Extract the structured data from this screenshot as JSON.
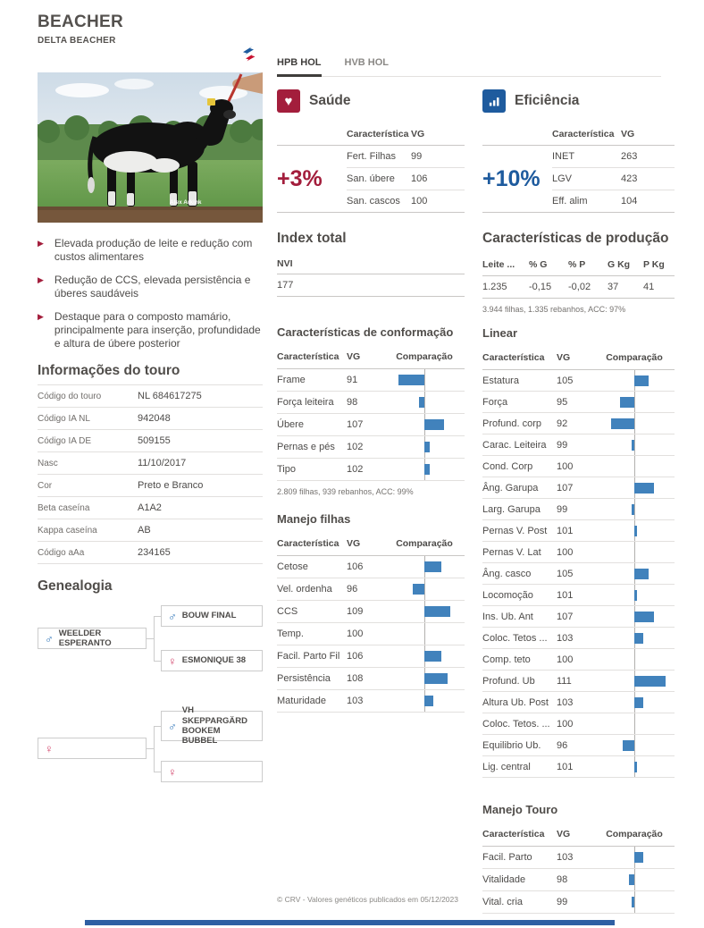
{
  "header": {
    "title": "BEACHER",
    "subtitle": "DELTA BEACHER"
  },
  "tabs": [
    {
      "label": "HPB HOL",
      "active": true
    },
    {
      "label": "HVB HOL",
      "active": false
    }
  ],
  "photo": {
    "credit": "Alex Arkink"
  },
  "bullets": [
    "Elevada produção de leite e redução com custos alimentares",
    "Redução de CCS, elevada persistência e úberes saudáveis",
    "Destaque para o composto mamário, principalmente para inserção, profundidade e altura de úbere posterior"
  ],
  "shared": {
    "col_feature": "Característica",
    "col_vg": "VG",
    "col_comparison": "Comparação"
  },
  "saude": {
    "title": "Saúde",
    "icon": "heart-icon",
    "delta": "+3%",
    "rows": [
      {
        "label": "Fert. Filhas",
        "vg": "99"
      },
      {
        "label": "San. úbere",
        "vg": "106"
      },
      {
        "label": "San. cascos",
        "vg": "100"
      }
    ]
  },
  "eficiencia": {
    "title": "Eficiência",
    "icon": "chart-bars-icon",
    "delta": "+10%",
    "rows": [
      {
        "label": "INET",
        "vg": "263"
      },
      {
        "label": "LGV",
        "vg": "423"
      },
      {
        "label": "Eff. alim",
        "vg": "104"
      }
    ]
  },
  "index_total": {
    "title": "Index total",
    "column": "NVI",
    "value": "177"
  },
  "producao": {
    "title": "Características de produção",
    "columns": [
      "Leite ...",
      "% G",
      "% P",
      "G Kg",
      "P Kg"
    ],
    "values": [
      "1.235",
      "-0,15",
      "-0,02",
      "37",
      "41"
    ],
    "footnote": "3.944 filhas, 1.335 rebanhos, ACC: 97%"
  },
  "touro_info": {
    "title": "Informações do touro",
    "rows": [
      {
        "label": "Código do touro",
        "value": "NL 684617275"
      },
      {
        "label": "Código IA NL",
        "value": "942048"
      },
      {
        "label": "Código IA DE",
        "value": "509155"
      },
      {
        "label": "Nasc",
        "value": "11/10/2017"
      },
      {
        "label": "Cor",
        "value": "Preto e Branco"
      },
      {
        "label": "Beta caseína",
        "value": "A1A2"
      },
      {
        "label": "Kappa caseína",
        "value": "AB"
      },
      {
        "label": "Código aAa",
        "value": "234165"
      }
    ]
  },
  "genealogia": {
    "title": "Genealogia",
    "sire": "WEELDER ESPERANTO",
    "sire_sire": "BOUW FINAL",
    "sire_dam": "ESMONIQUE 38",
    "dam": "",
    "dam_sire": "VH SKEPPARGÄRD BOOKEM BUBBEL",
    "dam_dam": ""
  },
  "conformacao": {
    "title": "Características de conformação",
    "footnote": "2.809 filhas, 939 rebanhos, ACC: 99%",
    "rows": [
      {
        "label": "Frame",
        "vg": 91
      },
      {
        "label": "Força leiteira",
        "vg": 98
      },
      {
        "label": "Úbere",
        "vg": 107
      },
      {
        "label": "Pernas e pés",
        "vg": 102
      },
      {
        "label": "Tipo",
        "vg": 102
      }
    ]
  },
  "manejo_filhas": {
    "title": "Manejo filhas",
    "rows": [
      {
        "label": "Cetose",
        "vg": 106
      },
      {
        "label": "Vel. ordenha",
        "vg": 96
      },
      {
        "label": "CCS",
        "vg": 109
      },
      {
        "label": "Temp.",
        "vg": 100
      },
      {
        "label": "Facil. Parto Fil",
        "vg": 106
      },
      {
        "label": "Persistência",
        "vg": 108
      },
      {
        "label": "Maturidade",
        "vg": 103
      }
    ]
  },
  "linear": {
    "title": "Linear",
    "rows": [
      {
        "label": "Estatura",
        "vg": 105
      },
      {
        "label": "Força",
        "vg": 95
      },
      {
        "label": "Profund. corp",
        "vg": 92
      },
      {
        "label": "Carac. Leiteira",
        "vg": 99
      },
      {
        "label": "Cond. Corp",
        "vg": 100
      },
      {
        "label": "Âng. Garupa",
        "vg": 107
      },
      {
        "label": "Larg. Garupa",
        "vg": 99
      },
      {
        "label": "Pernas V. Post",
        "vg": 101
      },
      {
        "label": "Pernas V. Lat",
        "vg": 100
      },
      {
        "label": "Âng. casco",
        "vg": 105
      },
      {
        "label": "Locomoção",
        "vg": 101
      },
      {
        "label": "Ins. Ub. Ant",
        "vg": 107
      },
      {
        "label": "Coloc. Tetos ...",
        "vg": 103
      },
      {
        "label": "Comp. teto",
        "vg": 100
      },
      {
        "label": "Profund. Ub",
        "vg": 111
      },
      {
        "label": "Altura Ub. Post",
        "vg": 103
      },
      {
        "label": "Coloc. Tetos. ...",
        "vg": 100
      },
      {
        "label": "Equilibrio Ub.",
        "vg": 96
      },
      {
        "label": "Lig. central",
        "vg": 101
      }
    ]
  },
  "manejo_touro": {
    "title": "Manejo Touro",
    "rows": [
      {
        "label": "Facil. Parto",
        "vg": 103
      },
      {
        "label": "Vitalidade",
        "vg": 98
      },
      {
        "label": "Vital. cria",
        "vg": 99
      }
    ]
  },
  "footer": {
    "text": "© CRV - Valores genéticos publicados em 05/12/2023"
  },
  "theme": {
    "accent_red": "#a31e3c",
    "accent_blue": "#1e5b9e",
    "bar_color": "#4182bc"
  }
}
